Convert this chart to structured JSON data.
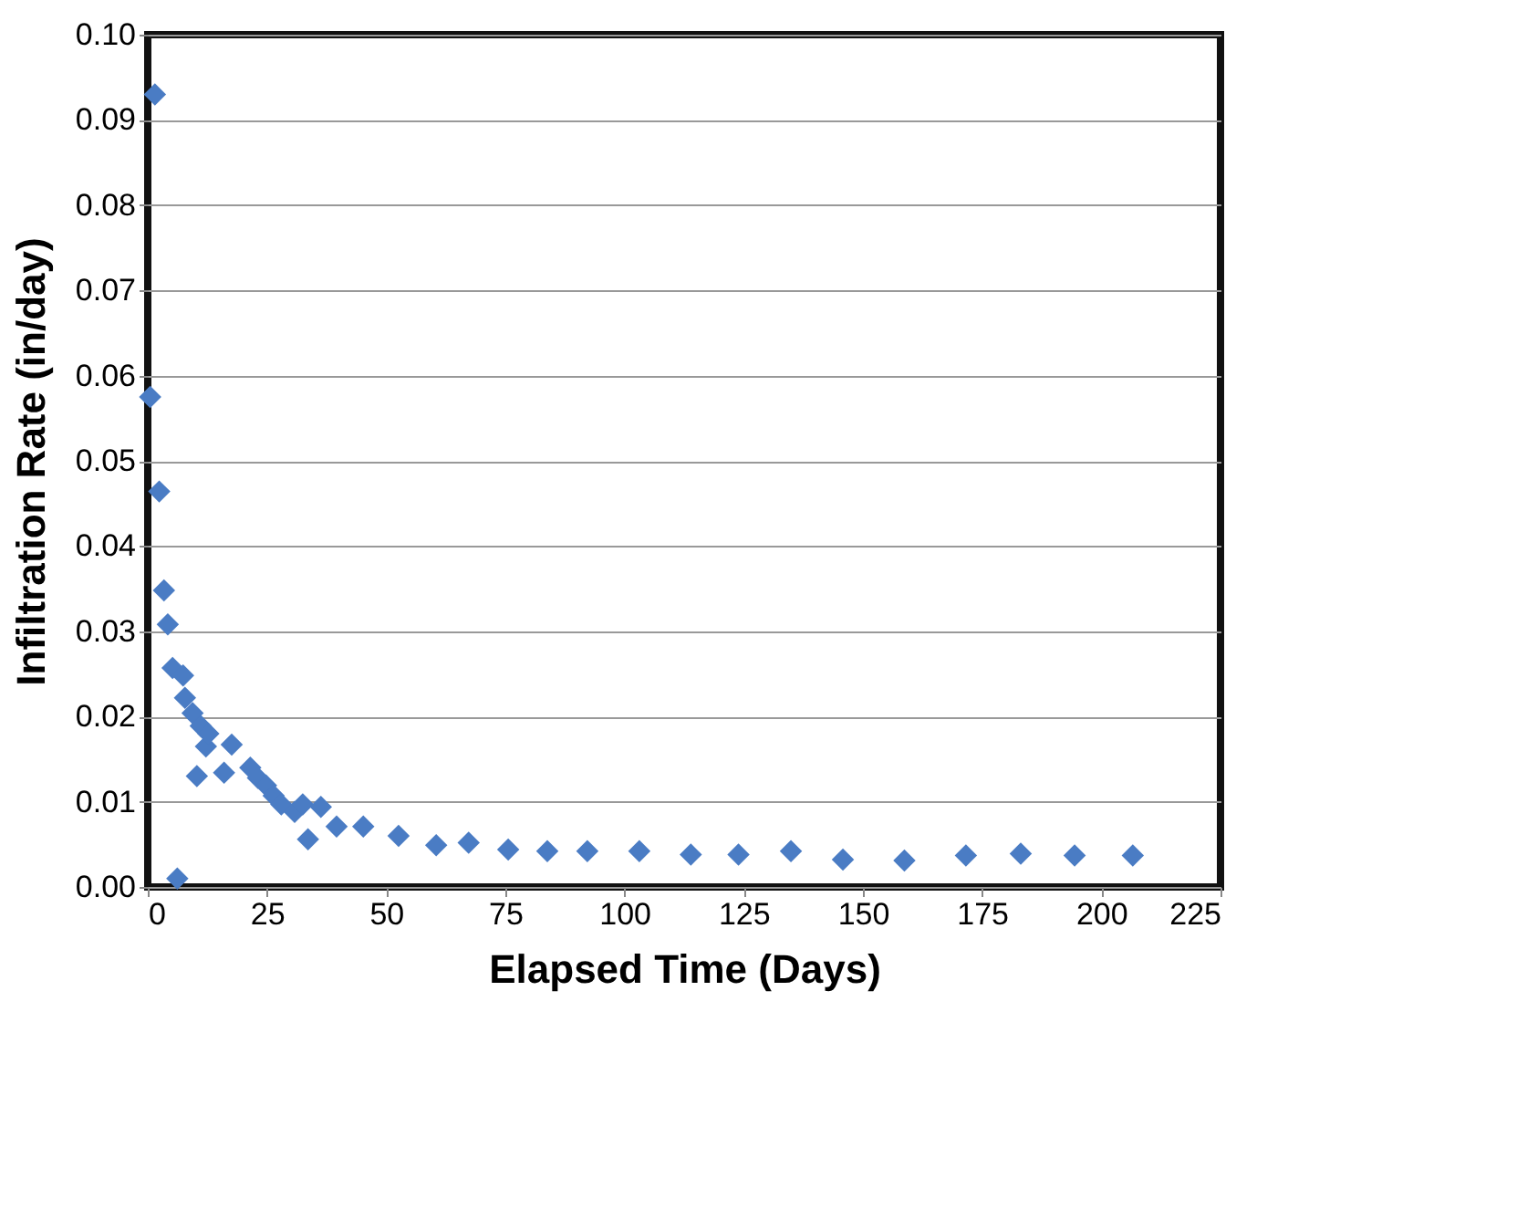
{
  "chart_data": {
    "type": "scatter",
    "xlabel": "Elapsed Time (Days)",
    "ylabel": "Infiltration Rate (in/day)",
    "xlim": [
      0,
      225
    ],
    "xticks": [
      0,
      25,
      50,
      75,
      100,
      125,
      150,
      175,
      200,
      225
    ],
    "ylim": [
      0,
      0.1
    ],
    "yticks": [
      {
        "value": 0,
        "label": "0.00"
      },
      0.01,
      0.02,
      0.03,
      0.04,
      0.05,
      0.06,
      0.07,
      0.08,
      0.09,
      {
        "value": 0.1,
        "label": "0.10"
      }
    ],
    "grid": "y",
    "marker": "diamond",
    "series": [
      {
        "color": "#4a7cc4",
        "x": [
          1.5,
          0.5,
          2.4,
          3.4,
          4.2,
          5.2,
          6.2,
          7.4,
          7.8,
          9.4,
          10.3,
          11.1,
          12.2,
          12.7,
          16.0,
          17.6,
          21.5,
          23.1,
          24.8,
          26.4,
          28.0,
          30.8,
          32.5,
          33.6,
          36.3,
          39.6,
          45.2,
          52.6,
          60.5,
          67.3,
          75.6,
          83.8,
          92.2,
          103.1,
          113.9,
          123.9,
          134.9,
          145.8,
          158.7,
          171.6,
          183.1,
          194.4,
          206.6
        ],
        "values": [
          0.093,
          0.0575,
          0.0464,
          0.0348,
          0.0308,
          0.0257,
          0.001,
          0.0248,
          0.0222,
          0.0204,
          0.013,
          0.0189,
          0.0165,
          0.018,
          0.0134,
          0.0167,
          0.014,
          0.0128,
          0.0119,
          0.0107,
          0.0097,
          0.0088,
          0.0097,
          0.0056,
          0.0094,
          0.0071,
          0.0071,
          0.006,
          0.0049,
          0.0052,
          0.0044,
          0.0042,
          0.0042,
          0.0042,
          0.0038,
          0.0038,
          0.0042,
          0.0032,
          0.0031,
          0.0037,
          0.0039,
          0.0037,
          0.0037
        ]
      }
    ]
  }
}
